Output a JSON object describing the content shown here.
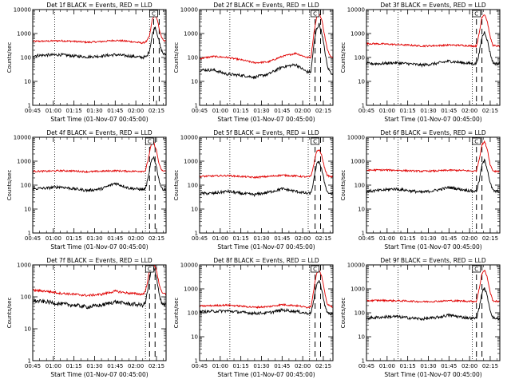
{
  "figure": {
    "xlabel": "Start Time (01-Nov-07 00:45:00)",
    "ylabel": "Counts/sec"
  },
  "chart_data": [
    {
      "type": "line",
      "title": "Det 1f BLACK = Events, RED = LLD",
      "xlabel": "Start Time (01-Nov-07 00:45:00)",
      "ylabel": "Counts/sec",
      "yscale": "log",
      "xlim": [
        0,
        97
      ],
      "ylim": [
        1,
        10000
      ],
      "x_tick_labels": [
        "00:45",
        "01:00",
        "01:15",
        "01:30",
        "01:45",
        "02:00",
        "02:15"
      ],
      "y_tick_labels": [
        "1",
        "10",
        "100",
        "1000",
        "10000"
      ],
      "vlines_dotted": [
        16,
        85
      ],
      "vlines_dashed": [
        88,
        92
      ],
      "label_box": "C",
      "series": [
        {
          "name": "LLD",
          "color": "#e00000",
          "x": [
            0,
            10,
            20,
            30,
            40,
            50,
            60,
            70,
            80,
            83,
            85,
            87,
            89,
            91,
            93,
            95,
            97
          ],
          "values": [
            470,
            480,
            500,
            470,
            430,
            460,
            520,
            470,
            400,
            480,
            800,
            4000,
            6200,
            3000,
            900,
            500,
            480
          ]
        },
        {
          "name": "Events",
          "color": "#000000",
          "x": [
            0,
            10,
            20,
            30,
            40,
            50,
            60,
            70,
            80,
            83,
            85,
            87,
            89,
            91,
            93,
            95,
            97
          ],
          "values": [
            120,
            125,
            130,
            115,
            105,
            115,
            130,
            115,
            100,
            110,
            200,
            900,
            2000,
            800,
            250,
            140,
            130
          ]
        }
      ]
    },
    {
      "type": "line",
      "title": "Det 2f BLACK = Events, RED = LLD",
      "xlabel": "Start Time (01-Nov-07 00:45:00)",
      "ylabel": "Counts/sec",
      "yscale": "log",
      "xlim": [
        0,
        97
      ],
      "ylim": [
        1,
        10000
      ],
      "x_tick_labels": [
        "00:45",
        "01:00",
        "01:15",
        "01:30",
        "01:45",
        "02:00",
        "02:15"
      ],
      "y_tick_labels": [
        "1",
        "10",
        "100",
        "1000",
        "10000"
      ],
      "vlines_dotted": [
        22,
        80
      ],
      "vlines_dashed": [
        84,
        88
      ],
      "label_box": "C",
      "series": [
        {
          "name": "LLD",
          "color": "#e00000",
          "x": [
            0,
            10,
            20,
            30,
            40,
            50,
            60,
            70,
            78,
            81,
            83,
            85,
            87,
            89,
            91,
            93,
            95,
            97
          ],
          "values": [
            90,
            110,
            100,
            80,
            60,
            65,
            110,
            150,
            100,
            100,
            900,
            4500,
            7000,
            3500,
            800,
            200,
            120,
            100
          ]
        },
        {
          "name": "Events",
          "color": "#000000",
          "x": [
            0,
            10,
            20,
            30,
            40,
            50,
            60,
            70,
            78,
            81,
            83,
            85,
            87,
            89,
            91,
            93,
            95,
            97
          ],
          "values": [
            30,
            30,
            20,
            18,
            15,
            20,
            40,
            50,
            25,
            25,
            300,
            1500,
            2500,
            1000,
            200,
            40,
            25,
            20
          ]
        }
      ]
    },
    {
      "type": "line",
      "title": "Det 3f BLACK = Events, RED = LLD",
      "xlabel": "Start Time (01-Nov-07 00:45:00)",
      "ylabel": "Counts/sec",
      "yscale": "log",
      "xlim": [
        0,
        97
      ],
      "ylim": [
        1,
        10000
      ],
      "x_tick_labels": [
        "00:45",
        "01:00",
        "01:15",
        "01:30",
        "01:45",
        "02:00",
        "02:15"
      ],
      "y_tick_labels": [
        "1",
        "10",
        "100",
        "1000",
        "10000"
      ],
      "vlines_dotted": [
        23,
        77
      ],
      "vlines_dashed": [
        80,
        84
      ],
      "label_box": "C",
      "series": [
        {
          "name": "LLD",
          "color": "#e00000",
          "x": [
            0,
            10,
            20,
            30,
            40,
            50,
            60,
            70,
            78,
            80,
            82,
            84,
            86,
            88,
            90,
            92,
            94,
            97
          ],
          "values": [
            380,
            370,
            350,
            330,
            300,
            310,
            330,
            320,
            300,
            300,
            1000,
            5000,
            6500,
            3000,
            700,
            320,
            300,
            300
          ]
        },
        {
          "name": "Events",
          "color": "#000000",
          "x": [
            0,
            10,
            20,
            30,
            40,
            50,
            60,
            70,
            78,
            80,
            82,
            84,
            86,
            88,
            90,
            92,
            94,
            97
          ],
          "values": [
            55,
            55,
            60,
            55,
            48,
            55,
            70,
            60,
            55,
            55,
            150,
            700,
            1200,
            500,
            150,
            60,
            55,
            55
          ]
        }
      ]
    },
    {
      "type": "line",
      "title": "Det 4f BLACK = Events, RED = LLD",
      "xlabel": "Start Time (01-Nov-07 00:45:00)",
      "ylabel": "Counts/sec",
      "yscale": "log",
      "xlim": [
        0,
        97
      ],
      "ylim": [
        1,
        10000
      ],
      "x_tick_labels": [
        "00:45",
        "01:00",
        "01:15",
        "01:30",
        "01:45",
        "02:00",
        "02:15"
      ],
      "y_tick_labels": [
        "1",
        "10",
        "100",
        "1000",
        "10000"
      ],
      "vlines_dotted": [
        16,
        82
      ],
      "vlines_dashed": [
        85,
        89
      ],
      "label_box": "C",
      "series": [
        {
          "name": "LLD",
          "color": "#e00000",
          "x": [
            0,
            10,
            20,
            30,
            40,
            50,
            60,
            70,
            80,
            82,
            84,
            86,
            88,
            90,
            92,
            94,
            97
          ],
          "values": [
            380,
            380,
            400,
            390,
            360,
            380,
            400,
            380,
            380,
            400,
            1200,
            4500,
            6000,
            2800,
            700,
            400,
            380
          ]
        },
        {
          "name": "Events",
          "color": "#000000",
          "x": [
            0,
            10,
            20,
            30,
            40,
            50,
            60,
            70,
            80,
            82,
            84,
            86,
            88,
            90,
            92,
            94,
            97
          ],
          "values": [
            70,
            75,
            85,
            70,
            60,
            70,
            120,
            75,
            65,
            70,
            200,
            900,
            1500,
            600,
            150,
            70,
            65
          ]
        }
      ]
    },
    {
      "type": "line",
      "title": "Det 5f BLACK = Events, RED = LLD",
      "xlabel": "Start Time (01-Nov-07 00:45:00)",
      "ylabel": "Counts/sec",
      "yscale": "log",
      "xlim": [
        0,
        97
      ],
      "ylim": [
        1,
        10000
      ],
      "x_tick_labels": [
        "00:45",
        "01:00",
        "01:15",
        "01:30",
        "01:45",
        "02:00",
        "02:15"
      ],
      "y_tick_labels": [
        "1",
        "10",
        "100",
        "1000",
        "10000"
      ],
      "vlines_dotted": [
        22,
        79
      ],
      "vlines_dashed": [
        84,
        88
      ],
      "label_box": "C",
      "series": [
        {
          "name": "LLD",
          "color": "#e00000",
          "x": [
            0,
            10,
            20,
            30,
            40,
            50,
            60,
            70,
            78,
            81,
            83,
            85,
            87,
            89,
            91,
            93,
            95,
            97
          ],
          "values": [
            230,
            240,
            250,
            230,
            210,
            230,
            260,
            240,
            220,
            230,
            700,
            2500,
            3000,
            1600,
            500,
            250,
            230,
            220
          ]
        },
        {
          "name": "Events",
          "color": "#000000",
          "x": [
            0,
            10,
            20,
            30,
            40,
            50,
            60,
            70,
            78,
            81,
            83,
            85,
            87,
            89,
            91,
            93,
            95,
            97
          ],
          "values": [
            45,
            45,
            55,
            45,
            40,
            50,
            70,
            55,
            45,
            45,
            150,
            700,
            1000,
            400,
            120,
            50,
            45,
            45
          ]
        }
      ]
    },
    {
      "type": "line",
      "title": "Det 6f BLACK = Events, RED = LLD",
      "xlabel": "Start Time (01-Nov-07 00:45:00)",
      "ylabel": "Counts/sec",
      "yscale": "log",
      "xlim": [
        0,
        97
      ],
      "ylim": [
        1,
        10000
      ],
      "x_tick_labels": [
        "00:45",
        "01:00",
        "01:15",
        "01:30",
        "01:45",
        "02:00",
        "02:15"
      ],
      "y_tick_labels": [
        "1",
        "10",
        "100",
        "1000",
        "10000"
      ],
      "vlines_dotted": [
        23,
        77
      ],
      "vlines_dashed": [
        80,
        84
      ],
      "label_box": "C",
      "series": [
        {
          "name": "LLD",
          "color": "#e00000",
          "x": [
            0,
            10,
            20,
            30,
            40,
            50,
            60,
            70,
            78,
            80,
            82,
            84,
            86,
            88,
            90,
            92,
            94,
            97
          ],
          "values": [
            420,
            430,
            420,
            400,
            380,
            390,
            420,
            410,
            380,
            400,
            1200,
            5000,
            6500,
            3000,
            700,
            400,
            380,
            380
          ]
        },
        {
          "name": "Events",
          "color": "#000000",
          "x": [
            0,
            10,
            20,
            30,
            40,
            50,
            60,
            70,
            78,
            80,
            82,
            84,
            86,
            88,
            90,
            92,
            94,
            97
          ],
          "values": [
            55,
            60,
            70,
            60,
            50,
            60,
            80,
            65,
            55,
            55,
            150,
            700,
            1100,
            450,
            120,
            60,
            55,
            55
          ]
        }
      ]
    },
    {
      "type": "line",
      "title": "Det 7f BLACK = Events, RED = LLD",
      "xlabel": "Start Time (01-Nov-07 00:45:00)",
      "ylabel": "Counts/sec",
      "yscale": "log",
      "xlim": [
        0,
        97
      ],
      "ylim": [
        1,
        1000
      ],
      "x_tick_labels": [
        "00:45",
        "01:00",
        "01:15",
        "01:30",
        "01:45",
        "02:00",
        "02:15"
      ],
      "y_tick_labels": [
        "1",
        "10",
        "100",
        "1000"
      ],
      "vlines_dotted": [
        16,
        82
      ],
      "vlines_dashed": [
        85,
        89
      ],
      "label_box": "C",
      "series": [
        {
          "name": "LLD",
          "color": "#e00000",
          "x": [
            0,
            10,
            20,
            30,
            40,
            50,
            60,
            70,
            80,
            82,
            84,
            86,
            88,
            90,
            92,
            94,
            97
          ],
          "values": [
            160,
            150,
            130,
            120,
            110,
            120,
            150,
            130,
            120,
            150,
            400,
            900,
            1000,
            700,
            250,
            130,
            120
          ]
        },
        {
          "name": "Events",
          "color": "#000000",
          "x": [
            0,
            10,
            20,
            30,
            40,
            50,
            60,
            70,
            80,
            82,
            84,
            86,
            88,
            90,
            92,
            94,
            97
          ],
          "values": [
            75,
            70,
            60,
            55,
            48,
            55,
            70,
            60,
            55,
            65,
            200,
            600,
            800,
            450,
            120,
            60,
            55
          ]
        }
      ]
    },
    {
      "type": "line",
      "title": "Det 8f BLACK = Events, RED = LLD",
      "xlabel": "Start Time (01-Nov-07 00:45:00)",
      "ylabel": "Counts/sec",
      "yscale": "log",
      "xlim": [
        0,
        97
      ],
      "ylim": [
        1,
        10000
      ],
      "x_tick_labels": [
        "00:45",
        "01:00",
        "01:15",
        "01:30",
        "01:45",
        "02:00",
        "02:15"
      ],
      "y_tick_labels": [
        "1",
        "10",
        "100",
        "1000",
        "10000"
      ],
      "vlines_dotted": [
        22,
        80
      ],
      "vlines_dashed": [
        84,
        88
      ],
      "label_box": "C",
      "series": [
        {
          "name": "LLD",
          "color": "#e00000",
          "x": [
            0,
            10,
            20,
            30,
            40,
            50,
            60,
            70,
            78,
            81,
            83,
            85,
            87,
            89,
            91,
            93,
            95,
            97
          ],
          "values": [
            190,
            200,
            210,
            190,
            170,
            180,
            220,
            200,
            170,
            180,
            900,
            4500,
            6000,
            3000,
            700,
            220,
            190,
            180
          ]
        },
        {
          "name": "Events",
          "color": "#000000",
          "x": [
            0,
            10,
            20,
            30,
            40,
            50,
            60,
            70,
            78,
            81,
            83,
            85,
            87,
            89,
            91,
            93,
            95,
            97
          ],
          "values": [
            110,
            115,
            120,
            105,
            95,
            100,
            130,
            115,
            95,
            100,
            300,
            1500,
            2200,
            900,
            200,
            100,
            90,
            90
          ]
        }
      ]
    },
    {
      "type": "line",
      "title": "Det 9f BLACK = Events, RED = LLD",
      "xlabel": "Start Time (01-Nov-07 00:45:00)",
      "ylabel": "Counts/sec",
      "yscale": "log",
      "xlim": [
        0,
        97
      ],
      "ylim": [
        1,
        10000
      ],
      "x_tick_labels": [
        "00:45",
        "01:00",
        "01:15",
        "01:30",
        "01:45",
        "02:00",
        "02:15"
      ],
      "y_tick_labels": [
        "1",
        "10",
        "100",
        "1000",
        "10000"
      ],
      "vlines_dotted": [
        23,
        77
      ],
      "vlines_dashed": [
        80,
        84
      ],
      "label_box": "C",
      "series": [
        {
          "name": "LLD",
          "color": "#e00000",
          "x": [
            0,
            10,
            20,
            30,
            40,
            50,
            60,
            70,
            78,
            80,
            82,
            84,
            86,
            88,
            90,
            92,
            94,
            97
          ],
          "values": [
            320,
            330,
            320,
            310,
            290,
            300,
            320,
            310,
            300,
            300,
            1000,
            4500,
            6000,
            2800,
            700,
            320,
            300,
            300
          ]
        },
        {
          "name": "Events",
          "color": "#000000",
          "x": [
            0,
            10,
            20,
            30,
            40,
            50,
            60,
            70,
            78,
            80,
            82,
            84,
            86,
            88,
            90,
            92,
            94,
            97
          ],
          "values": [
            60,
            65,
            70,
            62,
            55,
            62,
            80,
            65,
            58,
            60,
            160,
            700,
            1100,
            450,
            130,
            62,
            58,
            58
          ]
        }
      ]
    }
  ]
}
